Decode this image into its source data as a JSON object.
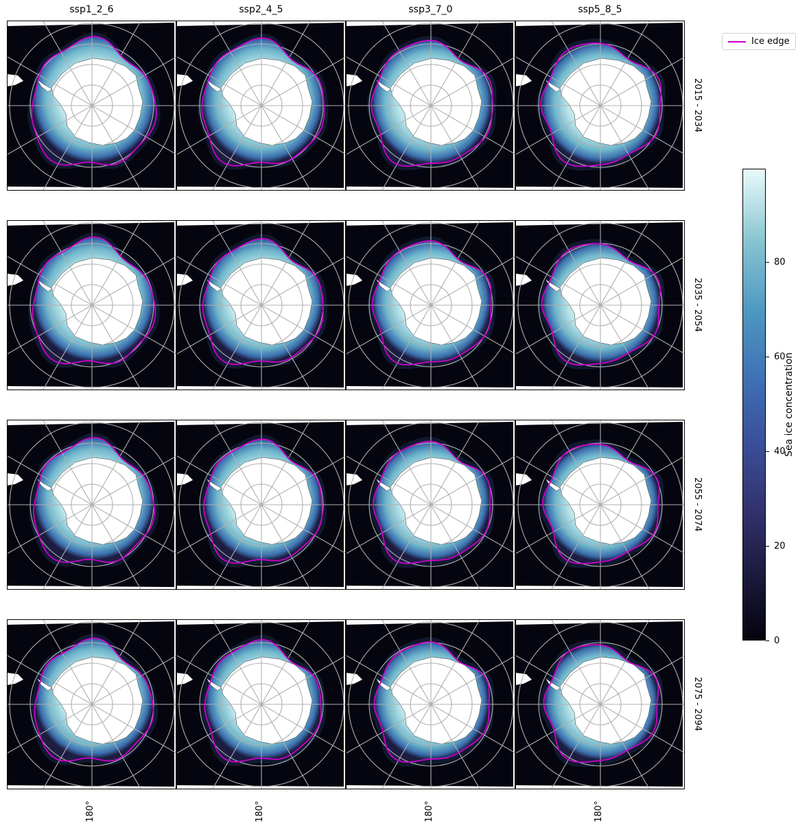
{
  "scenarios": [
    "ssp1_2_6",
    "ssp2_4_5",
    "ssp3_7_0",
    "ssp5_8_5"
  ],
  "periods": [
    "2015 - 2034",
    "2035 - 2054",
    "2055 - 2074",
    "2075 - 2094"
  ],
  "longitude_label": "180°",
  "legend": {
    "label": "Ice edge",
    "color": "#cc00cc"
  },
  "colorbar": {
    "title": "Sea ice concentration",
    "ticks": [
      "0",
      "20",
      "40",
      "60",
      "80"
    ],
    "range": [
      0,
      100
    ]
  },
  "colors": {
    "ocean": "#05050f",
    "ice_edge": "#cc00cc",
    "land": "#ffffff",
    "gridlines": "#b0b0b0"
  }
}
